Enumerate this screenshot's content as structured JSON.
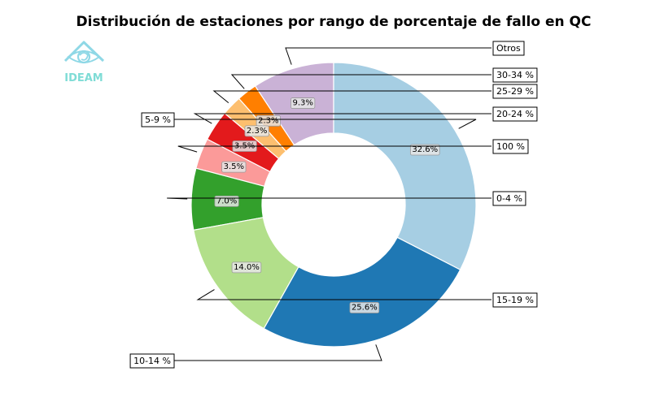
{
  "logo": {
    "text": "IDEAM",
    "color": "#7fdcd6",
    "icon": "ideam-eye-logo-icon"
  },
  "chart_data": {
    "type": "pie",
    "variant": "donut",
    "title": "Distribución de estaciones por rango de porcentaje de fallo en QC",
    "unit": "%",
    "start": "top, counter-clockwise",
    "slices": [
      {
        "label": "Otros",
        "value": 9.3,
        "pct_label": "9.3%",
        "color": "#cab2d6"
      },
      {
        "label": "30-34 %",
        "value": 2.3,
        "pct_label": "2.3%",
        "color": "#ff7f00"
      },
      {
        "label": "25-29 %",
        "value": 2.3,
        "pct_label": "2.3%",
        "color": "#fdbf6f"
      },
      {
        "label": "20-24 %",
        "value": 3.5,
        "pct_label": "3.5%",
        "color": "#e31a1c"
      },
      {
        "label": "100 %",
        "value": 3.5,
        "pct_label": "3.5%",
        "color": "#fb9a99"
      },
      {
        "label": "0-4 %",
        "value": 7.0,
        "pct_label": "7.0%",
        "color": "#33a02c"
      },
      {
        "label": "15-19 %",
        "value": 14.0,
        "pct_label": "14.0%",
        "color": "#b2df8a"
      },
      {
        "label": "10-14 %",
        "value": 25.6,
        "pct_label": "25.6%",
        "color": "#1f78b4"
      },
      {
        "label": "5-9 %",
        "value": 32.6,
        "pct_label": "32.6%",
        "color": "#a6cee3"
      }
    ]
  }
}
